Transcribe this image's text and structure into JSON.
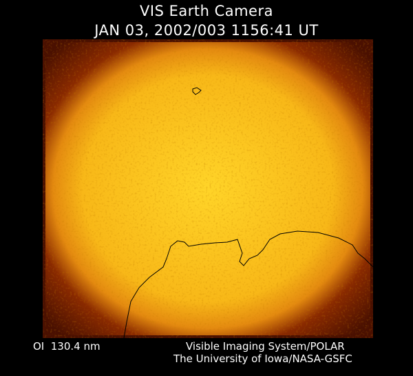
{
  "header": {
    "title": "VIS Earth Camera",
    "timestamp": "JAN 03, 2002/003 1156:41 UT"
  },
  "footer": {
    "wavelength": "OI  130.4 nm",
    "instrument": "Visible Imaging System/POLAR",
    "credit": "The University of Iowa/NASA-GSFC"
  },
  "image": {
    "colors": {
      "center": "#ffd020",
      "mid": "#f0a010",
      "edge": "#6a1800",
      "coastline": "#000000"
    }
  }
}
